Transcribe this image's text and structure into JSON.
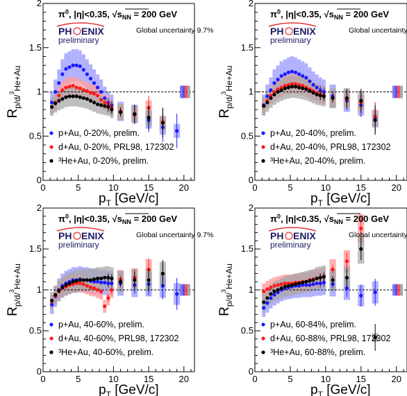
{
  "figure": {
    "colors": {
      "pAu": "#1a1aff",
      "dAu": "#ff1a1a",
      "HeAu": "#000000",
      "pAu_band": "#9e9eff",
      "dAu_band": "#ff9e9e",
      "HeAu_band": "#a8a8a8"
    },
    "panel_header": "π⁰, |η|<0.35, √sNN = 200 GeV",
    "header_parts": {
      "pi": "π",
      "pi_sup": "0",
      "eta": ", |η|<0.35, ",
      "sqrt": "√",
      "s": "s",
      "nn": "NN",
      "energy": " = 200 GeV"
    },
    "global_uncertainty": "Global uncertainty 9.7%",
    "logo": {
      "text_left": "PH",
      "text_right": "ENIX",
      "sub": "preliminary"
    },
    "ylabel": "Rp/d/³He+Au",
    "ylabel_parts": {
      "R": "R",
      "sub": "p/d/",
      "sup3": "3",
      "sub2": "He+Au"
    },
    "xlabel": "pT [GeV/c]",
    "xlabel_parts": {
      "p": "p",
      "T": "T",
      "unit": " [GeV/c]"
    },
    "xticks": [
      "0",
      "5",
      "10",
      "15",
      "20"
    ],
    "yticks": [
      "0",
      "0.5",
      "1",
      "1.5",
      "2"
    ]
  },
  "chart_data": [
    {
      "type": "scatter",
      "title": "",
      "xlim": [
        0,
        21.5
      ],
      "ylim": [
        0,
        2
      ],
      "grid": false,
      "legend_position": "bottom-left",
      "legend": [
        "p+Au, 0-20%, prelim.",
        "d+Au, 0-20%, PRL98, 172302",
        "³He+Au, 0-20%, prelim."
      ],
      "series": [
        {
          "color_key": "pAu",
          "x": [
            1.25,
            1.75,
            2.25,
            2.75,
            3.25,
            3.75,
            4.25,
            4.75,
            5.25,
            5.75,
            6.25,
            6.75,
            7.25,
            7.75,
            8.25,
            8.75,
            9.25,
            9.75,
            11,
            13,
            15,
            17,
            19
          ],
          "y": [
            0.88,
            1.0,
            1.1,
            1.2,
            1.26,
            1.28,
            1.3,
            1.3,
            1.29,
            1.25,
            1.2,
            1.15,
            1.1,
            1.05,
            1.0,
            0.93,
            0.88,
            0.85,
            0.78,
            0.75,
            0.68,
            0.6,
            0.56
          ]
        },
        {
          "color_key": "dAu",
          "x": [
            1.25,
            1.75,
            2.25,
            2.75,
            3.25,
            3.75,
            4.25,
            4.75,
            5.25,
            5.75,
            6.25,
            6.75,
            7.25,
            7.75,
            8.25,
            8.75,
            9.25,
            9.75,
            11,
            13,
            15,
            17
          ],
          "y": [
            0.83,
            0.88,
            0.96,
            1.02,
            1.05,
            1.06,
            1.07,
            1.05,
            1.04,
            1.02,
            1.01,
            0.99,
            0.98,
            0.96,
            0.91,
            0.88,
            0.86,
            0.82,
            0.78,
            0.74,
            0.82,
            0.66
          ]
        },
        {
          "color_key": "HeAu",
          "x": [
            1.25,
            1.75,
            2.25,
            2.75,
            3.25,
            3.75,
            4.25,
            4.75,
            5.25,
            5.75,
            6.25,
            6.75,
            7.25,
            7.75,
            8.25,
            8.75,
            9.25,
            9.75,
            11,
            13,
            15,
            17
          ],
          "y": [
            0.83,
            0.87,
            0.9,
            0.92,
            0.94,
            0.95,
            0.95,
            0.95,
            0.94,
            0.93,
            0.92,
            0.9,
            0.88,
            0.86,
            0.85,
            0.84,
            0.83,
            0.8,
            0.77,
            0.75,
            0.71,
            0.65
          ]
        }
      ]
    },
    {
      "type": "scatter",
      "title": "",
      "xlim": [
        0,
        21.5
      ],
      "ylim": [
        0,
        2
      ],
      "grid": false,
      "legend_position": "bottom-left",
      "legend": [
        "p+Au, 20-40%, prelim.",
        "d+Au, 20-40%, PRL98, 172302",
        "³He+Au, 20-40%, prelim."
      ],
      "series": [
        {
          "color_key": "pAu",
          "x": [
            1.25,
            1.75,
            2.25,
            2.75,
            3.25,
            3.75,
            4.25,
            4.75,
            5.25,
            5.75,
            6.25,
            6.75,
            7.25,
            7.75,
            8.25,
            8.75,
            9.25,
            9.75,
            11,
            13,
            15,
            17
          ],
          "y": [
            0.85,
            0.95,
            1.02,
            1.1,
            1.14,
            1.18,
            1.2,
            1.22,
            1.23,
            1.22,
            1.2,
            1.18,
            1.16,
            1.12,
            1.08,
            1.05,
            1.02,
            1.0,
            0.95,
            0.9,
            0.85,
            0.7
          ]
        },
        {
          "color_key": "dAu",
          "x": [
            1.25,
            1.75,
            2.25,
            2.75,
            3.25,
            3.75,
            4.25,
            4.75,
            5.25,
            5.75,
            6.25,
            6.75,
            7.25,
            7.75,
            8.25,
            8.75,
            9.25,
            9.75,
            11,
            13,
            15,
            17
          ],
          "y": [
            0.84,
            0.9,
            0.96,
            1.0,
            1.03,
            1.05,
            1.07,
            1.08,
            1.09,
            1.09,
            1.08,
            1.07,
            1.05,
            1.03,
            1.01,
            0.99,
            0.97,
            0.96,
            0.93,
            0.92,
            0.88,
            0.72
          ]
        },
        {
          "color_key": "HeAu",
          "x": [
            1.25,
            1.75,
            2.25,
            2.75,
            3.25,
            3.75,
            4.25,
            4.75,
            5.25,
            5.75,
            6.25,
            6.75,
            7.25,
            7.75,
            8.25,
            8.75,
            9.25,
            9.75,
            11,
            13,
            15,
            17
          ],
          "y": [
            0.84,
            0.88,
            0.93,
            0.97,
            1.0,
            1.02,
            1.04,
            1.05,
            1.06,
            1.06,
            1.05,
            1.04,
            1.03,
            1.01,
            0.99,
            0.97,
            0.96,
            0.95,
            0.93,
            0.93,
            0.9,
            0.68
          ]
        }
      ]
    },
    {
      "type": "scatter",
      "title": "",
      "xlim": [
        0,
        21.5
      ],
      "ylim": [
        0,
        2
      ],
      "grid": false,
      "legend_position": "bottom-left",
      "legend": [
        "p+Au, 40-60%, prelim.",
        "d+Au, 40-60%, PRL98, 172302",
        "³He+Au, 40-60%, prelim."
      ],
      "series": [
        {
          "color_key": "pAu",
          "x": [
            1.25,
            1.75,
            2.25,
            2.75,
            3.25,
            3.75,
            4.25,
            4.75,
            5.25,
            5.75,
            6.25,
            6.75,
            7.25,
            7.75,
            8.25,
            8.75,
            9.25,
            9.75,
            11,
            13,
            15,
            17,
            19
          ],
          "y": [
            0.82,
            0.92,
            1.0,
            1.05,
            1.08,
            1.1,
            1.12,
            1.12,
            1.13,
            1.12,
            1.12,
            1.11,
            1.1,
            1.1,
            1.09,
            1.09,
            1.08,
            1.08,
            1.08,
            1.06,
            1.07,
            1.05,
            0.95
          ]
        },
        {
          "color_key": "dAu",
          "x": [
            1.25,
            1.75,
            2.25,
            2.75,
            3.25,
            3.75,
            4.25,
            4.75,
            5.25,
            5.75,
            6.25,
            6.75,
            7.25,
            7.75,
            8.25,
            8.75,
            9.25,
            9.75,
            11,
            13,
            15
          ],
          "y": [
            0.86,
            0.93,
            0.98,
            1.02,
            1.04,
            1.06,
            1.07,
            1.08,
            1.08,
            1.07,
            1.05,
            1.03,
            1.02,
            1.0,
            0.98,
            0.8,
            0.9,
            1.0,
            1.13,
            1.15,
            1.25
          ]
        },
        {
          "color_key": "HeAu",
          "x": [
            1.25,
            1.75,
            2.25,
            2.75,
            3.25,
            3.75,
            4.25,
            4.75,
            5.25,
            5.75,
            6.25,
            6.75,
            7.25,
            7.75,
            8.25,
            8.75,
            9.25,
            9.75,
            11,
            13,
            15,
            17
          ],
          "y": [
            0.87,
            0.94,
            0.99,
            1.03,
            1.06,
            1.08,
            1.1,
            1.11,
            1.12,
            1.12,
            1.12,
            1.12,
            1.13,
            1.14,
            1.14,
            1.15,
            1.15,
            1.14,
            1.1,
            1.12,
            1.12,
            1.2
          ]
        }
      ]
    },
    {
      "type": "scatter",
      "title": "",
      "xlim": [
        0,
        21.5
      ],
      "ylim": [
        0,
        2
      ],
      "grid": false,
      "legend_position": "bottom-left",
      "legend": [
        "p+Au, 60-84%, prelim.",
        "d+Au, 60-88%, PRL98, 172302",
        "³He+Au, 60-88%, prelim."
      ],
      "series": [
        {
          "color_key": "pAu",
          "x": [
            1.25,
            1.75,
            2.25,
            2.75,
            3.25,
            3.75,
            4.25,
            4.75,
            5.25,
            5.75,
            6.25,
            6.75,
            7.25,
            7.75,
            8.25,
            8.75,
            9.25,
            9.75,
            11,
            13,
            15,
            17
          ],
          "y": [
            0.78,
            0.84,
            0.9,
            0.94,
            0.97,
            1.0,
            1.02,
            1.03,
            1.04,
            1.05,
            1.05,
            1.06,
            1.06,
            1.06,
            1.07,
            1.08,
            1.08,
            1.09,
            1.07,
            1.02,
            0.93,
            0.97
          ]
        },
        {
          "color_key": "dAu",
          "x": [
            1.25,
            1.75,
            2.25,
            2.75,
            3.25,
            3.75,
            4.25,
            4.75,
            5.25,
            5.75,
            6.25,
            6.75,
            7.25,
            7.75,
            8.25,
            8.75,
            9.25,
            9.75,
            11,
            13,
            15
          ],
          "y": [
            0.98,
            1.01,
            1.03,
            1.05,
            1.06,
            1.07,
            1.08,
            1.08,
            1.08,
            1.09,
            1.09,
            1.1,
            1.1,
            1.12,
            1.13,
            1.14,
            1.15,
            1.16,
            1.25,
            1.35,
            1.75
          ]
        },
        {
          "color_key": "HeAu",
          "x": [
            1.25,
            1.75,
            2.25,
            2.75,
            3.25,
            3.75,
            4.25,
            4.75,
            5.25,
            5.75,
            6.25,
            6.75,
            7.25,
            7.75,
            8.25,
            8.75,
            9.25,
            9.75,
            11,
            13,
            15,
            17
          ],
          "y": [
            0.85,
            0.9,
            0.95,
            0.98,
            1.0,
            1.02,
            1.04,
            1.05,
            1.06,
            1.07,
            1.08,
            1.09,
            1.1,
            1.11,
            1.12,
            1.14,
            1.15,
            1.16,
            1.12,
            1.15,
            1.5,
            0.42
          ]
        }
      ]
    }
  ]
}
